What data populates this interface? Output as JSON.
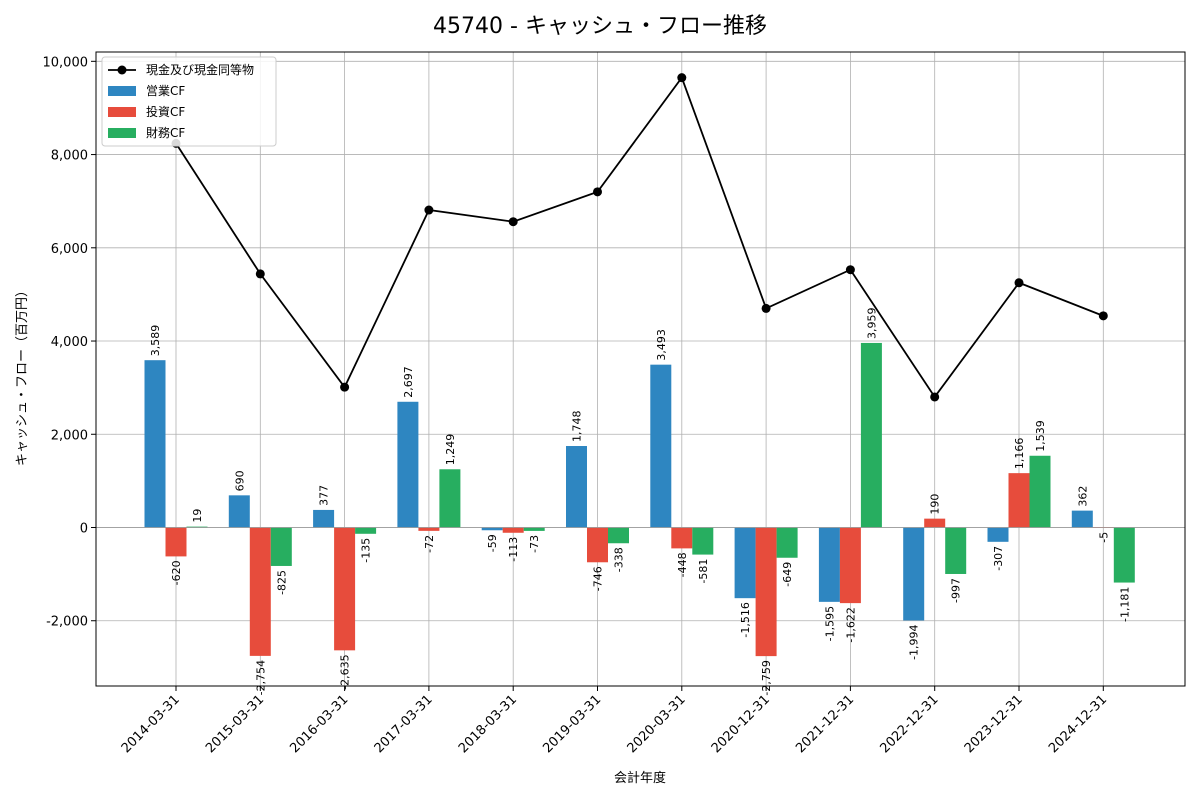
{
  "chart_data": {
    "type": "bar",
    "title": "45740 - キャッシュ・フロー推移",
    "xlabel": "会計年度",
    "ylabel": "キャッシュ・フロー（百万円）",
    "ylim": [
      -3400,
      10200
    ],
    "yticks": [
      -2000,
      0,
      2000,
      4000,
      6000,
      8000,
      10000
    ],
    "ytick_labels": [
      "-2,000",
      "0",
      "2,000",
      "4,000",
      "6,000",
      "8,000",
      "10,000"
    ],
    "grid": true,
    "legend_position": "top-left",
    "categories": [
      "2014-03-31",
      "2015-03-31",
      "2016-03-31",
      "2017-03-31",
      "2018-03-31",
      "2019-03-31",
      "2020-03-31",
      "2020-12-31",
      "2021-12-31",
      "2022-12-31",
      "2023-12-31",
      "2024-12-31"
    ],
    "series": [
      {
        "name": "営業CF",
        "kind": "bar",
        "color": "#2e86c1",
        "values": [
          3589,
          690,
          377,
          2697,
          -59,
          1748,
          3493,
          -1516,
          -1595,
          -1994,
          -307,
          362
        ],
        "labels": [
          "3,589",
          "690",
          "377",
          "2,697",
          "-59",
          "1,748",
          "3,493",
          "-1,516",
          "-1,595",
          "-1,994",
          "-307",
          "362"
        ]
      },
      {
        "name": "投資CF",
        "kind": "bar",
        "color": "#e74c3c",
        "values": [
          -620,
          -2754,
          -2635,
          -72,
          -113,
          -746,
          -448,
          -2759,
          -1622,
          190,
          1166,
          -5
        ],
        "labels": [
          "-620",
          "-2,754",
          "-2,635",
          "-72",
          "-113",
          "-746",
          "-448",
          "-2,759",
          "-1,622",
          "190",
          "1,166",
          "-5"
        ]
      },
      {
        "name": "財務CF",
        "kind": "bar",
        "color": "#27ae60",
        "values": [
          19,
          -825,
          -135,
          1249,
          -73,
          -338,
          -581,
          -649,
          3959,
          -997,
          1539,
          -1181
        ],
        "labels": [
          "19",
          "-825",
          "-135",
          "1,249",
          "-73",
          "-338",
          "-581",
          "-649",
          "3,959",
          "-997",
          "1,539",
          "-1,181"
        ]
      },
      {
        "name": "現金及び現金同等物",
        "kind": "line",
        "color": "#000000",
        "values": [
          8240,
          5440,
          3010,
          6810,
          6560,
          7200,
          9650,
          4700,
          5530,
          2800,
          5250,
          4540
        ]
      }
    ]
  }
}
